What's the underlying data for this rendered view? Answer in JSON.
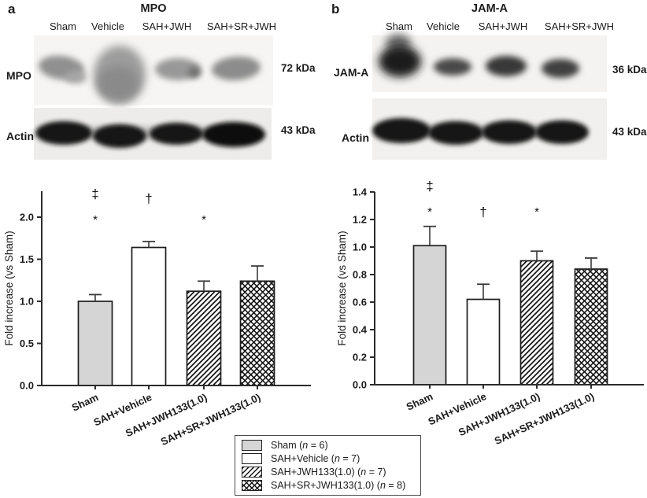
{
  "colors": {
    "bar_gray": "#d5d5d5",
    "bar_white": "#ffffff",
    "ink": "#1b1b1b",
    "error_bar": "#3a3a3a"
  },
  "figure": {
    "panels": [
      {
        "letter": "a",
        "title": "MPO",
        "lanes": [
          "Sham",
          "Vehicle",
          "SAH+JWH",
          "SAH+SR+JWH"
        ],
        "blot_rows": [
          {
            "label": "MPO",
            "weight": "72 kDa"
          },
          {
            "label": "Actin",
            "weight": "43 kDa"
          }
        ]
      },
      {
        "letter": "b",
        "title": "JAM-A",
        "lanes": [
          "Sham",
          "Vehicle",
          "SAH+JWH",
          "SAH+SR+JWH"
        ],
        "blot_rows": [
          {
            "label": "JAM-A",
            "weight": "36 kDa"
          },
          {
            "label": "Actin",
            "weight": "43 kDa"
          }
        ]
      }
    ]
  },
  "chart_data": [
    {
      "type": "bar",
      "panel": "a",
      "title": "MPO",
      "xlabel": "",
      "ylabel": "Fold increase (vs Sham)",
      "categories": [
        "Sham",
        "SAH+Vehicle",
        "SAH+JWH133(1.0)",
        "SAH+SR+JWH133(1.0)"
      ],
      "values": [
        1.0,
        1.64,
        1.12,
        1.24
      ],
      "errors_plus": [
        0.08,
        0.07,
        0.12,
        0.18
      ],
      "ylim": [
        0.0,
        2.3
      ],
      "yticks": [
        "0.0",
        "0.5",
        "1.0",
        "1.5",
        "2.0"
      ],
      "grid": false,
      "bar_fills": [
        "gray",
        "white",
        "diag",
        "cross"
      ],
      "significance": [
        {
          "bar": 0,
          "symbols": [
            "‡",
            "*"
          ]
        },
        {
          "bar": 1,
          "symbols": [
            "†"
          ]
        },
        {
          "bar": 2,
          "symbols": [
            "*"
          ]
        }
      ]
    },
    {
      "type": "bar",
      "panel": "b",
      "title": "JAM-A",
      "xlabel": "",
      "ylabel": "Fold increase (vs Sham)",
      "categories": [
        "Sham",
        "SAH+Vehicle",
        "SAH+JWH133(1.0)",
        "SAH+SR+JWH133(1.0)"
      ],
      "values": [
        1.01,
        0.62,
        0.9,
        0.84
      ],
      "errors_plus": [
        0.14,
        0.11,
        0.07,
        0.08
      ],
      "ylim": [
        0.0,
        1.45
      ],
      "yticks": [
        "0.0",
        "0.2",
        "0.4",
        "0.6",
        "0.8",
        "1.0",
        "1.2",
        "1.4"
      ],
      "grid": false,
      "bar_fills": [
        "gray",
        "white",
        "diag",
        "cross"
      ],
      "significance": [
        {
          "bar": 0,
          "symbols": [
            "‡",
            "*"
          ]
        },
        {
          "bar": 1,
          "symbols": [
            "†"
          ]
        },
        {
          "bar": 2,
          "symbols": [
            "*"
          ]
        }
      ]
    }
  ],
  "legend": {
    "position": "bottom-center",
    "items": [
      {
        "fill": "gray",
        "pre": "Sham (",
        "n": "n",
        "post": " = 6)"
      },
      {
        "fill": "white",
        "pre": "SAH+Vehicle (",
        "n": "n",
        "post": " = 7)"
      },
      {
        "fill": "diag",
        "pre": "SAH+JWH133(1.0) (",
        "n": "n",
        "post": " = 7)"
      },
      {
        "fill": "cross",
        "pre": "SAH+SR+JWH133(1.0) (",
        "n": "n",
        "post": " = 8)"
      }
    ]
  }
}
